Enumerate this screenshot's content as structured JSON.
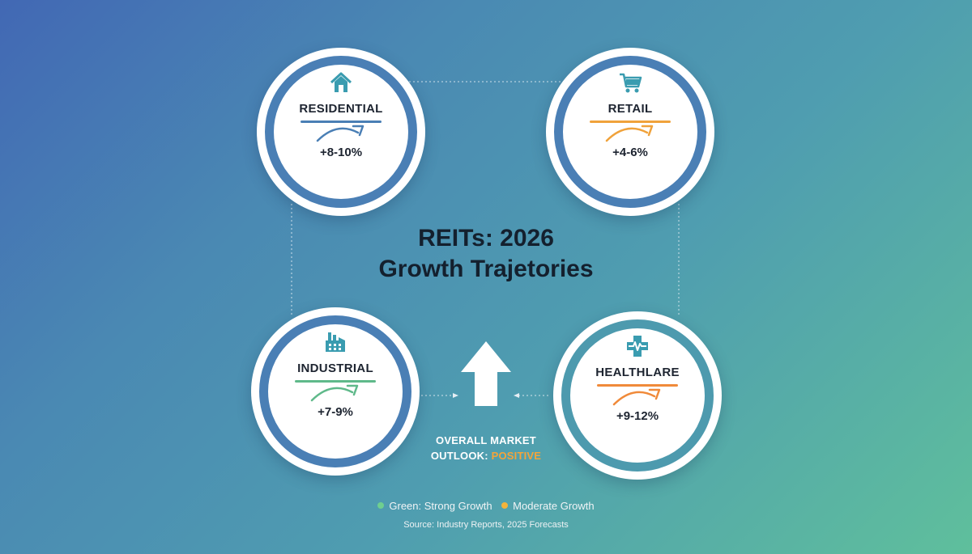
{
  "title": {
    "line1": "REITs: 2026",
    "line2": "Growth Trajetories"
  },
  "sectors": {
    "residential": {
      "label": "RESIDENTIAL",
      "value": "+8-10%",
      "icon": "house-icon",
      "color": "#4a7fb5"
    },
    "retail": {
      "label": "RETAIL",
      "value": "+4-6%",
      "icon": "shopping-cart-icon",
      "color": "#f0a23b"
    },
    "industrial": {
      "label": "INDUSTRIAL",
      "value": "+7-9%",
      "icon": "factory-icon",
      "color": "#5fb98a"
    },
    "healthcare": {
      "label": "HEALTHLARE",
      "value": "+9-12%",
      "icon": "medical-cross-icon",
      "color": "#f08a3a"
    }
  },
  "outlook": {
    "prefix": "OVERALL MARKET",
    "label": "OUTLOOK:",
    "status": "POSITIVE",
    "status_color": "#f4a43a"
  },
  "legend": {
    "green_label": "Green: Strong Growth",
    "green_color": "#6fcf8f",
    "orange_label": "Moderate Growth",
    "orange_color": "#f4b43a"
  },
  "source": "Source: Industry Reports, 2025 Forecasts"
}
